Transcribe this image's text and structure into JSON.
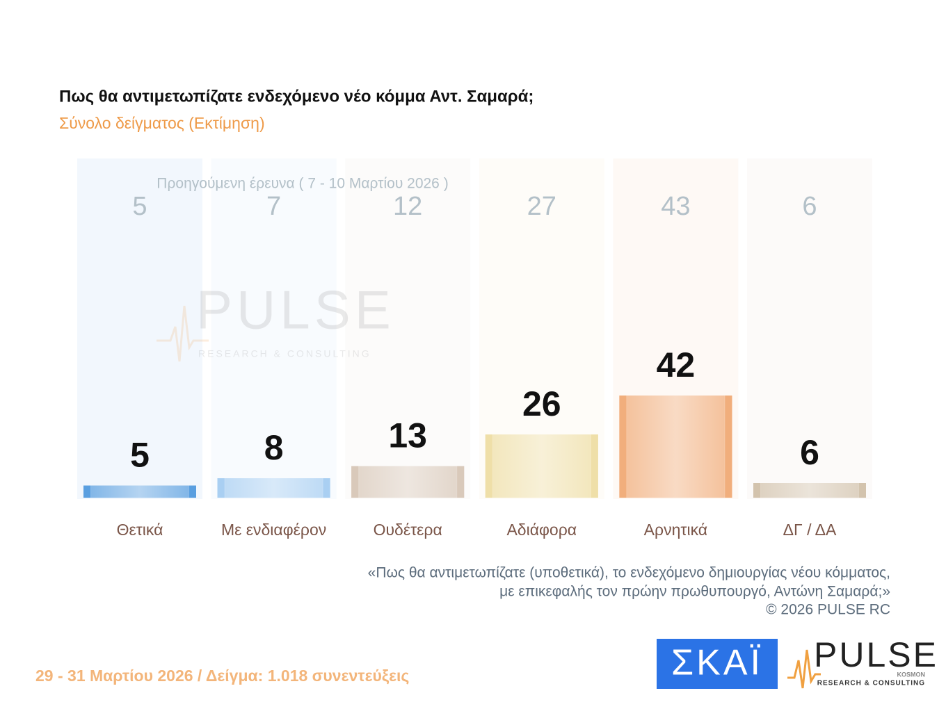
{
  "chart_data": {
    "type": "bar",
    "title": "Πως θα αντιμετωπίζατε ενδεχόμενο νέο κόμμα Αντ. Σαμαρά;",
    "subtitle": "Σύνολο δείγματος  (Εκτίμηση)",
    "categories": [
      "Θετικά",
      "Με ενδιαφέρον",
      "Ουδέτερα",
      "Αδιάφορα",
      "Αρνητικά",
      "ΔΓ / ΔΑ"
    ],
    "values": [
      5,
      8,
      13,
      26,
      42,
      6
    ],
    "colors": [
      "#5a9fe0",
      "#a9cff2",
      "#d9c9ba",
      "#efdfa8",
      "#f1ae7c",
      "#d3c3ad"
    ],
    "previous": {
      "name": "Προηγούμενη έρευνα ( 7 - 10 Μαρτίου 2026 )",
      "values": [
        5,
        7,
        12,
        27,
        43,
        6
      ]
    },
    "note": [
      "«Πως θα αντιμετωπίζατε (υποθετικά), το ενδεχόμενο δημιουργίας νέου κόμματος,",
      "με επικεφαλής τον πρώην πρωθυπουργό, Αντώνη Σαμαρά;»",
      "©  2026  PULSE RC"
    ],
    "footer": "29 - 31  Μαρτίου 2026  /  Δείγμα:  1.018 συνεντεύξεις",
    "watermark": {
      "title": "PULSE",
      "subtitle": "RESEARCH & CONSULTING"
    },
    "logos": {
      "skai": "ΣΚΑΪ",
      "pulse": "PULSE",
      "pulse_small": "KOSMON",
      "pulse_tagline": "RESEARCH & CONSULTING"
    }
  }
}
